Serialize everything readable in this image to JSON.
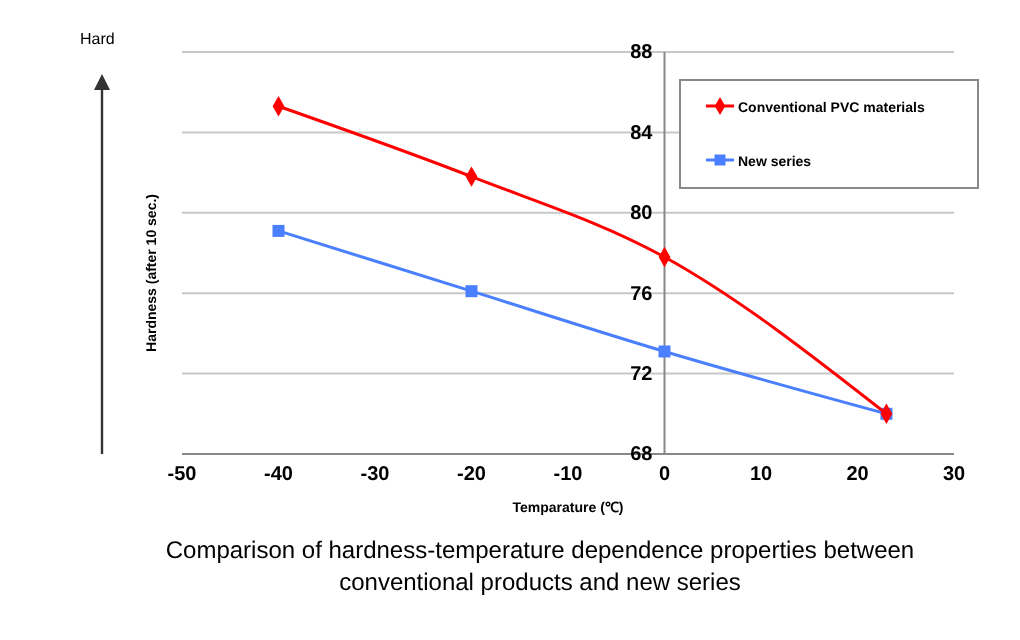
{
  "chart_data": {
    "type": "line",
    "title": "Comparison of hardness-temperature dependence properties between conventional products and new series",
    "xlabel": "Temparature (℃)",
    "ylabel": "Hardness (after 10 sec.)",
    "annotations": [
      "Hard"
    ],
    "xlim": [
      -50,
      30
    ],
    "xticks": [
      -50,
      -40,
      -30,
      -20,
      -10,
      0,
      10,
      20,
      30
    ],
    "ylim": [
      68,
      88
    ],
    "yticks": [
      68,
      72,
      76,
      80,
      84,
      88
    ],
    "grid": "y",
    "legend": "top right",
    "line_style": "solid",
    "series": [
      {
        "name": "Conventional PVC materials",
        "color": "#ff0000",
        "marker": "diamond",
        "x": [
          -40,
          -20,
          0,
          23
        ],
        "values": [
          85.3,
          81.8,
          77.8,
          70.0
        ]
      },
      {
        "name": "New series",
        "color": "#4a7fff",
        "marker": "square",
        "x": [
          -40,
          -20,
          0,
          23
        ],
        "values": [
          79.1,
          76.1,
          73.1,
          70.0
        ]
      }
    ]
  }
}
